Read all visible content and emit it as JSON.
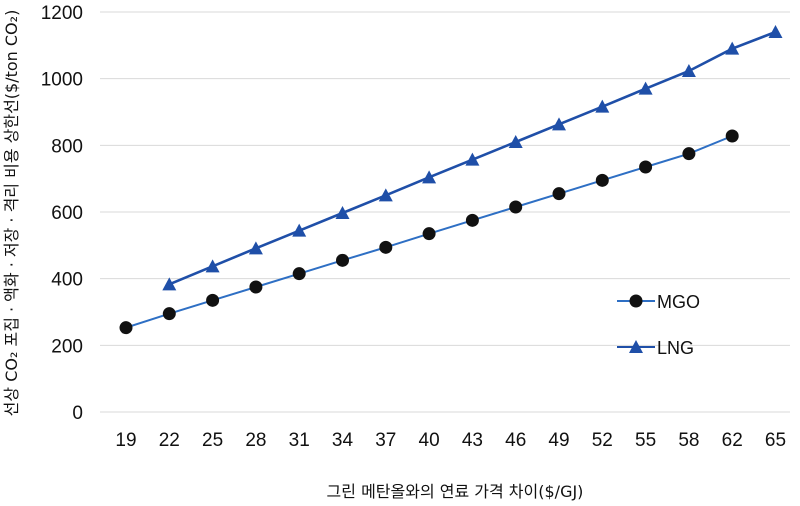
{
  "chart_data": {
    "type": "line",
    "title": "",
    "xlabel": "그린 메탄올와의 연료 가격 차이($/GJ)",
    "ylabel": "선상 CO₂ 포집 · 액화 · 저장 · 격리 비용 상한선($/ton CO₂)",
    "categories": [
      "19",
      "22",
      "25",
      "28",
      "31",
      "34",
      "37",
      "40",
      "43",
      "46",
      "49",
      "52",
      "55",
      "58",
      "62",
      "65"
    ],
    "ylim": [
      0,
      1200
    ],
    "yticks": [
      "0",
      "200",
      "400",
      "600",
      "800",
      "1000",
      "1200"
    ],
    "grid": true,
    "legend_position": "right",
    "series": [
      {
        "name": "MGO",
        "marker": "circle",
        "line_color": "#2e6fc4",
        "marker_color": "#111111",
        "values": [
          253,
          295,
          335,
          375,
          415,
          455,
          494,
          535,
          575,
          615,
          655,
          695,
          735,
          775,
          828,
          null
        ]
      },
      {
        "name": "LNG",
        "marker": "triangle",
        "line_color": "#1f4fa8",
        "marker_color": "#1f4fa8",
        "values": [
          null,
          383,
          437,
          491,
          544,
          597,
          650,
          704,
          757,
          810,
          863,
          916,
          970,
          1023,
          1090,
          1140
        ]
      }
    ]
  }
}
